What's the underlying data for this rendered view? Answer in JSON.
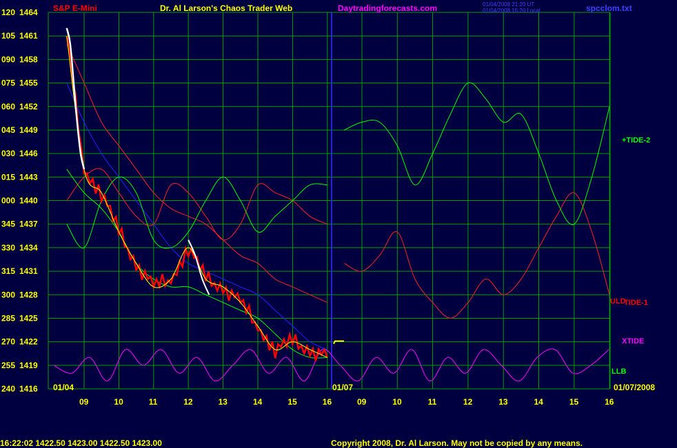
{
  "header": {
    "instrument": "S&P E-Mini",
    "title": "Dr. Al Larson's Chaos Trader Web",
    "site": "Daytradingforecasts.com",
    "stamp_line1": "01/04/2008 21:20 UT",
    "stamp_line2": "01/04/2008 15:20 Local",
    "file": "spcclom.txt"
  },
  "footer": {
    "quote": "16:22:02  1422.50 1423.00 1422.50 1423.00",
    "copyright": "Copyright 2008, Dr. Al Larson. May not be copied by any means."
  },
  "colors": {
    "background": "#000040",
    "grid": "#00a000",
    "divider": "#3030ff",
    "price_red": "#ff0000",
    "price_white": "#ffffff",
    "avg_yellow": "#ffff00",
    "tide2": "#00ff00",
    "tide1": "#ff2020",
    "xtide": "#ff00ff",
    "blue_line": "#2020ff",
    "axis_text": "#ffff00"
  },
  "chart_data": {
    "type": "line",
    "title": "S&P E-Mini",
    "y_axis_left": [
      "120",
      "105",
      "090",
      "075",
      "060",
      "045",
      "030",
      "015",
      "000",
      "345",
      "330",
      "315",
      "300",
      "285",
      "270",
      "255",
      "240"
    ],
    "y_axis_prices": [
      "1464",
      "1461",
      "1458",
      "1455",
      "1452",
      "1449",
      "1446",
      "1443",
      "1440",
      "1437",
      "1434",
      "1431",
      "1428",
      "1425",
      "1422",
      "1419",
      "1416"
    ],
    "ylim": [
      1416,
      1464
    ],
    "x_ticks_day1": [
      "09",
      "10",
      "11",
      "12",
      "13",
      "14",
      "15",
      "16"
    ],
    "x_ticks_day2": [
      "09",
      "10",
      "11",
      "12",
      "13",
      "14",
      "15",
      "16"
    ],
    "date_start": "01/04",
    "date_divider": "01/07",
    "date_end": "01/07/2008",
    "series_labels": {
      "tide2": "+TIDE-2",
      "uld": "ULD",
      "tide1": "TIDE-1",
      "xtide": "XTIDE",
      "llb": "LLB"
    },
    "day1_hours": [
      8.5,
      9,
      9.5,
      10,
      10.5,
      11,
      11.5,
      12,
      12.5,
      13,
      13.5,
      14,
      14.5,
      15,
      15.5,
      16
    ],
    "price": [
      1461,
      1444,
      1441,
      1436,
      1432,
      1429,
      1430,
      1434,
      1430,
      1429,
      1427,
      1424,
      1421,
      1422,
      1421,
      1420
    ],
    "price_white_segment": {
      "hours": [
        8.5,
        8.6,
        8.7,
        8.8,
        8.9,
        9.0
      ],
      "values": [
        1462,
        1460,
        1455,
        1450,
        1446,
        1444
      ]
    },
    "tide2_day1": [
      1437,
      1434,
      1440,
      1443,
      1441,
      1435,
      1434,
      1436,
      1440,
      1443,
      1440,
      1436,
      1438,
      1440,
      1442,
      1442
    ],
    "tide2_day2": [
      1449,
      1450,
      1450,
      1447,
      1442,
      1446,
      1451,
      1455,
      1453,
      1450,
      1451,
      1446,
      1440,
      1437,
      1443,
      1452
    ],
    "tide1_day1": [
      1440,
      1443,
      1444,
      1441,
      1438,
      1437,
      1442,
      1441,
      1438,
      1435,
      1437,
      1442,
      1441,
      1440,
      1438,
      1437
    ],
    "tide1_day2": [
      1432,
      1431,
      1433,
      1436,
      1430,
      1427,
      1425,
      1427,
      1430,
      1428,
      1430,
      1434,
      1438,
      1441,
      1436,
      1428
    ],
    "red_mean_day1": [
      1460,
      1455,
      1450,
      1447,
      1444,
      1441,
      1439,
      1438,
      1437,
      1435,
      1433,
      1432,
      1430,
      1429,
      1428,
      1427
    ],
    "blue_day1": [
      1455,
      1450,
      1446,
      1443,
      1440,
      1437,
      1434,
      1432,
      1431,
      1430,
      1429,
      1428,
      1426,
      1424,
      1422,
      1421
    ],
    "green_lower_day1": [
      1444,
      1441,
      1439,
      1436,
      1432,
      1430,
      1429,
      1429,
      1428,
      1427,
      1426,
      1425,
      1423,
      1421,
      1420,
      1420
    ],
    "xtide": [
      1419,
      1418,
      1420,
      1417,
      1421,
      1419,
      1421,
      1418,
      1420,
      1417,
      1419,
      1421,
      1418,
      1420,
      1417,
      1421,
      1419,
      1417,
      1420,
      1418,
      1421,
      1417,
      1420,
      1418,
      1421,
      1419,
      1417,
      1420,
      1421,
      1418,
      1419,
      1421
    ]
  }
}
